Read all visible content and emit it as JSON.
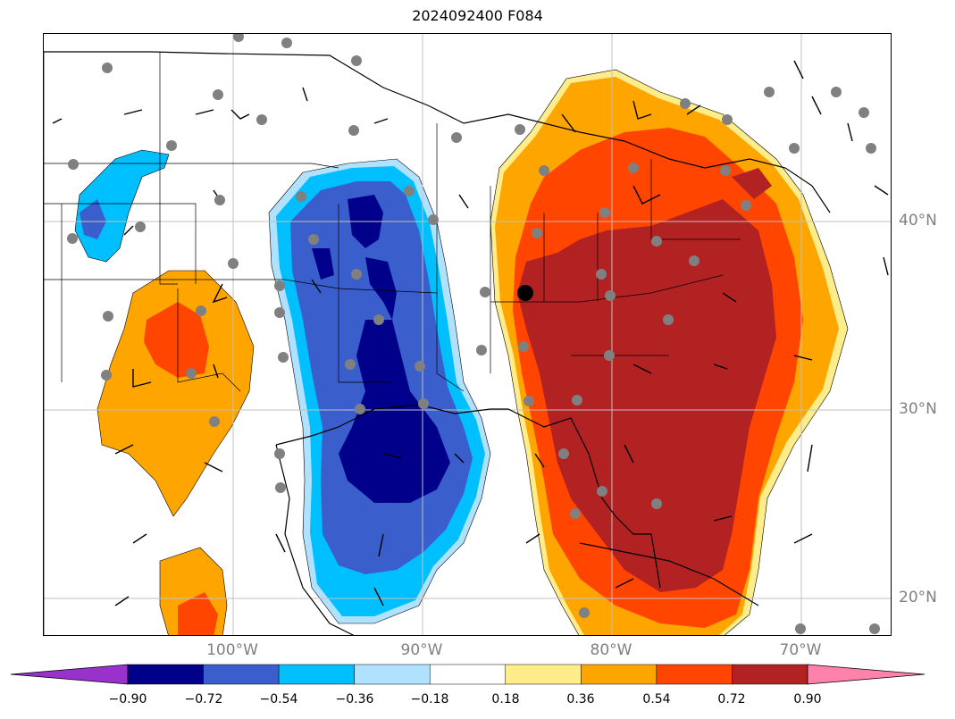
{
  "title": "2024092400 F084",
  "axes": {
    "lon_labels": [
      "100°W",
      "90°W",
      "80°W",
      "70°W"
    ],
    "lat_labels": [
      "40°N",
      "30°N",
      "20°N"
    ]
  },
  "colorbar": {
    "ticks": [
      "−0.90",
      "−0.72",
      "−0.54",
      "−0.36",
      "−0.18",
      "0.18",
      "0.36",
      "0.54",
      "0.72",
      "0.90"
    ],
    "colors": [
      "#9932cc",
      "#00008b",
      "#3a5fcd",
      "#00bfff",
      "#b0e2ff",
      "#ffffff",
      "#ffec8b",
      "#ffa500",
      "#ff4500",
      "#b22222",
      "#ff82ab"
    ]
  },
  "colors": {
    "negative_fill_light": "#b0e2ff",
    "negative_fill_mid": "#00bfff",
    "negative_fill_strong": "#3a5fcd",
    "negative_fill_max": "#00008b",
    "positive_fill_light": "#ffec8b",
    "positive_fill_mid": "#ffa500",
    "positive_fill_strong": "#ff4500",
    "positive_fill_max": "#b22222",
    "station_dot": "#808080",
    "center_marker": "#000000",
    "gridline": "#c0c0c0"
  }
}
